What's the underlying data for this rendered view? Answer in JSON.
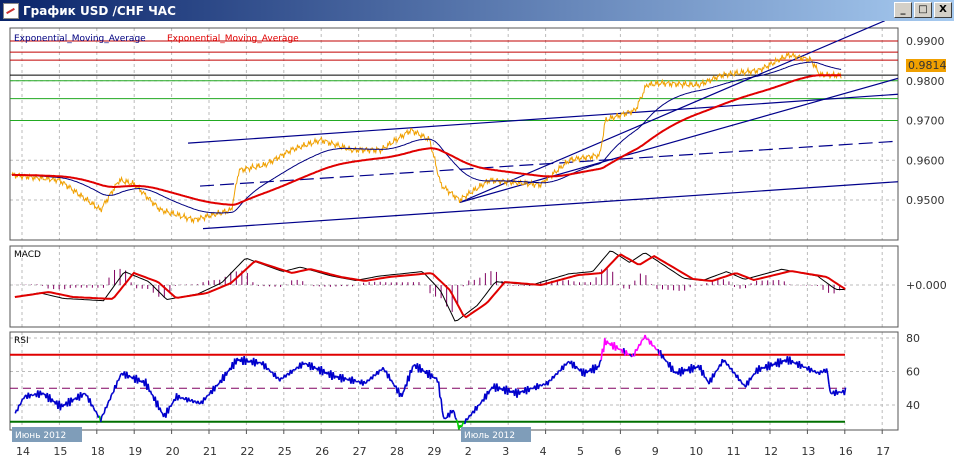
{
  "window": {
    "title": "График USD /CHF  ЧАС",
    "buttons": {
      "minimize": "_",
      "maximize": "□",
      "close": "X"
    }
  },
  "colors": {
    "price": "#f0a000",
    "ema_fast": "#000080",
    "ema_slow": "#e00000",
    "trend": "#00008b",
    "macd_hist": "#800060",
    "rsi": "#0000cc",
    "rsi_over": "#ff00ff",
    "rsi_under": "#00cc00",
    "badge": "#f0a000"
  },
  "main": {
    "legend": [
      "Exponential_Moving_Average",
      "Exponential_Moving_Average"
    ],
    "price_ticks": [
      "0.9900",
      "0.9800",
      "0.9700",
      "0.9600",
      "0.9500"
    ],
    "current_price": "0.9814"
  },
  "macd": {
    "title": "MACD",
    "zero_label": "+0.000"
  },
  "rsi": {
    "title": "RSI",
    "ticks": [
      "80",
      "60",
      "40"
    ]
  },
  "x_axis": {
    "days": [
      "14",
      "15",
      "18",
      "19",
      "20",
      "21",
      "22",
      "25",
      "26",
      "27",
      "28",
      "29",
      "2",
      "3",
      "4",
      "5",
      "6",
      "9",
      "10",
      "11",
      "12",
      "13",
      "16",
      "17"
    ],
    "month_labels": [
      "Июнь 2012",
      "Июль 2012"
    ]
  },
  "chart_data": {
    "type": "line",
    "x_unit": "trading day index (0 = 14 Jun 2012 on the day labels)",
    "price": {
      "ylim": [
        0.944,
        0.9935
      ],
      "points": [
        [
          -0.27,
          0.9563
        ],
        [
          0.5,
          0.9555
        ],
        [
          1,
          0.955
        ],
        [
          2.1,
          0.9475
        ],
        [
          2.6,
          0.955
        ],
        [
          3,
          0.954
        ],
        [
          3.7,
          0.9475
        ],
        [
          4.6,
          0.945
        ],
        [
          5.6,
          0.9475
        ],
        [
          5.8,
          0.9575
        ],
        [
          6.5,
          0.9588
        ],
        [
          7.2,
          0.9626
        ],
        [
          8,
          0.9651
        ],
        [
          8.8,
          0.9626
        ],
        [
          9.6,
          0.9626
        ],
        [
          10.4,
          0.9676
        ],
        [
          10.9,
          0.9651
        ],
        [
          11.2,
          0.9538
        ],
        [
          11.7,
          0.95
        ],
        [
          12.5,
          0.955
        ],
        [
          13.85,
          0.9538
        ],
        [
          14.65,
          0.9601
        ],
        [
          15.45,
          0.9613
        ],
        [
          15.6,
          0.9701
        ],
        [
          16.4,
          0.9726
        ],
        [
          16.7,
          0.9789
        ],
        [
          17.1,
          0.9794
        ],
        [
          18.1,
          0.9789
        ],
        [
          18.7,
          0.9814
        ],
        [
          19.7,
          0.9826
        ],
        [
          20.5,
          0.9865
        ],
        [
          21.1,
          0.9852
        ],
        [
          21.35,
          0.9814
        ],
        [
          21.9,
          0.9814
        ]
      ]
    },
    "levels": {
      "red": [
        0.99,
        0.9872,
        0.9852
      ],
      "black": [
        0.9814
      ],
      "green": [
        0.98,
        0.9755,
        0.97
      ]
    },
    "trendlines": [
      {
        "from": [
          4.44,
          0.9643
        ],
        "to": [
          23.42,
          0.9766
        ],
        "style": "solid"
      },
      {
        "from": [
          4.76,
          0.9535
        ],
        "to": [
          23.42,
          0.9648
        ],
        "style": "dashed"
      },
      {
        "from": [
          4.84,
          0.9428
        ],
        "to": [
          23.42,
          0.9546
        ],
        "style": "solid"
      },
      {
        "from": [
          11.71,
          0.9494
        ],
        "to": [
          23.42,
          0.9806
        ],
        "style": "solid"
      },
      {
        "from": [
          11.71,
          0.9494
        ],
        "to": [
          23.07,
          0.9951
        ],
        "style": "solid"
      }
    ],
    "macd_signal": {
      "ylim": [
        -0.0042,
        0.0039
      ],
      "points": [
        [
          -0.19,
          -0.0012
        ],
        [
          0.72,
          -0.0007
        ],
        [
          1.36,
          -0.0012
        ],
        [
          2.43,
          -0.0014
        ],
        [
          2.99,
          0.0012
        ],
        [
          3.64,
          0.0003
        ],
        [
          4.12,
          -0.0013
        ],
        [
          4.95,
          -0.0008
        ],
        [
          5.59,
          0.0002
        ],
        [
          6.23,
          0.0024
        ],
        [
          7.22,
          0.0012
        ],
        [
          7.7,
          0.0016
        ],
        [
          8.53,
          0.0008
        ],
        [
          9.17,
          0.0004
        ],
        [
          9.81,
          0.0008
        ],
        [
          10.96,
          0.0012
        ],
        [
          11.44,
          -0.0005
        ],
        [
          11.84,
          -0.0033
        ],
        [
          12.43,
          -0.0018
        ],
        [
          12.91,
          0.0003
        ],
        [
          13.88,
          0
        ],
        [
          14.87,
          0.001
        ],
        [
          15.51,
          0.0012
        ],
        [
          15.99,
          0.0031
        ],
        [
          16.5,
          0.002
        ],
        [
          16.9,
          0.0029
        ],
        [
          17.94,
          0.0006
        ],
        [
          18.45,
          0.0004
        ],
        [
          19.09,
          0.0012
        ],
        [
          19.57,
          0.0005
        ],
        [
          20.56,
          0.0014
        ],
        [
          21.52,
          0.0008
        ],
        [
          22.01,
          -0.0004
        ]
      ]
    },
    "rsi": {
      "ylim": [
        25,
        83
      ],
      "overbought": 70,
      "mid": 50,
      "oversold": 30,
      "points": [
        [
          -0.18,
          35
        ],
        [
          0.06,
          45
        ],
        [
          0.55,
          47
        ],
        [
          1.04,
          39
        ],
        [
          1.69,
          47
        ],
        [
          2.1,
          31
        ],
        [
          2.66,
          59
        ],
        [
          3.31,
          53
        ],
        [
          3.8,
          33
        ],
        [
          4.13,
          45
        ],
        [
          4.78,
          41
        ],
        [
          5.27,
          53
        ],
        [
          5.75,
          67
        ],
        [
          6.41,
          65
        ],
        [
          6.89,
          55
        ],
        [
          7.54,
          65
        ],
        [
          8.36,
          57
        ],
        [
          9.17,
          53
        ],
        [
          9.66,
          62
        ],
        [
          10.15,
          45
        ],
        [
          10.47,
          64
        ],
        [
          11.12,
          55
        ],
        [
          11.28,
          31
        ],
        [
          11.53,
          37
        ],
        [
          11.69,
          26
        ],
        [
          12.26,
          41
        ],
        [
          12.59,
          51
        ],
        [
          13.24,
          47
        ],
        [
          14.05,
          53
        ],
        [
          14.62,
          66
        ],
        [
          15.02,
          59
        ],
        [
          15.43,
          63
        ],
        [
          15.59,
          78
        ],
        [
          16.33,
          69
        ],
        [
          16.65,
          81
        ],
        [
          17.06,
          71
        ],
        [
          17.47,
          59
        ],
        [
          18.11,
          63
        ],
        [
          18.36,
          53
        ],
        [
          18.76,
          67
        ],
        [
          19.33,
          51
        ],
        [
          19.66,
          61
        ],
        [
          20.47,
          67
        ],
        [
          21.29,
          59
        ],
        [
          21.53,
          61
        ],
        [
          21.61,
          47
        ],
        [
          22.02,
          48
        ]
      ]
    }
  }
}
